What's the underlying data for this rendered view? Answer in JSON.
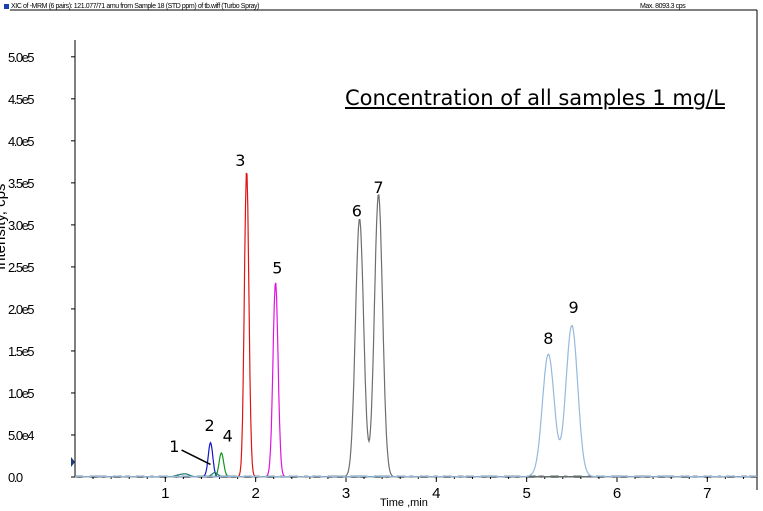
{
  "header": {
    "left_text": "XIC of -MRM (6 pairs): 121.077/71 amu from Sample 18 (STD ppm) of tb.wiff (Turbo Spray)",
    "right_text": "Max. 8093.3 cps"
  },
  "annotation": "Concentration of all samples 1 mg/L",
  "colors": {
    "red": "#e01414",
    "magenta": "#e014e0",
    "blue": "#1414c8",
    "green": "#14961e",
    "gray": "#6e6e6e",
    "lightblue": "#96b9dc",
    "teal": "#1e7e6e",
    "axis": "#000000"
  },
  "chart_data": {
    "type": "line",
    "xlabel": "Time ,min",
    "ylabel": "Intensity, cps",
    "xlim": [
      0,
      7.55
    ],
    "ylim": [
      0,
      520000.0
    ],
    "x_ticks": [
      1,
      2,
      3,
      4,
      5,
      6,
      7
    ],
    "x_tick_labels": [
      "1",
      "2",
      "3",
      "4",
      "5",
      "6",
      "7"
    ],
    "y_ticks": [
      0,
      50000,
      100000,
      150000,
      200000,
      250000,
      300000,
      350000,
      400000,
      450000,
      500000
    ],
    "y_tick_labels": [
      "0.0",
      "5.0e4",
      "1.0e5",
      "1.5e5",
      "2.0e5",
      "2.5e5",
      "3.0e5",
      "3.5e5",
      "4.0e5",
      "4.5e5",
      "5.0e5"
    ],
    "series": [
      {
        "color": "red",
        "peaks": [
          {
            "rt": 1.9,
            "height": 365000,
            "width": 0.025
          }
        ]
      },
      {
        "color": "magenta",
        "peaks": [
          {
            "rt": 2.22,
            "height": 232000,
            "width": 0.028
          }
        ]
      },
      {
        "color": "blue",
        "peaks": [
          {
            "rt": 1.5,
            "height": 40000,
            "width": 0.025
          }
        ]
      },
      {
        "color": "green",
        "peaks": [
          {
            "rt": 1.62,
            "height": 28000,
            "width": 0.025
          }
        ]
      },
      {
        "color": "teal",
        "peaks": [
          {
            "rt": 1.2,
            "height": 3000,
            "width": 0.06
          },
          {
            "rt": 1.55,
            "height": 5000,
            "width": 0.03
          }
        ]
      },
      {
        "color": "gray",
        "peaks": [
          {
            "rt": 3.15,
            "height": 307000,
            "width": 0.045
          },
          {
            "rt": 3.36,
            "height": 336000,
            "width": 0.045
          }
        ]
      },
      {
        "color": "lightblue",
        "peaks": [
          {
            "rt": 5.24,
            "height": 146000,
            "width": 0.065
          },
          {
            "rt": 5.5,
            "height": 180000,
            "width": 0.065
          }
        ]
      }
    ],
    "peak_labels": [
      {
        "label": "1",
        "x": 1.1,
        "y": 30000
      },
      {
        "label": "2",
        "x": 1.49,
        "y": 55000
      },
      {
        "label": "3",
        "x": 1.83,
        "y": 370000
      },
      {
        "label": "4",
        "x": 1.69,
        "y": 42000
      },
      {
        "label": "5",
        "x": 2.24,
        "y": 242000
      },
      {
        "label": "6",
        "x": 3.12,
        "y": 310000
      },
      {
        "label": "7",
        "x": 3.36,
        "y": 338000
      },
      {
        "label": "8",
        "x": 5.24,
        "y": 158000
      },
      {
        "label": "9",
        "x": 5.52,
        "y": 195000
      }
    ],
    "pointer": {
      "label": "1",
      "from": [
        1.18,
        32000
      ],
      "to": [
        1.5,
        15000
      ]
    }
  }
}
